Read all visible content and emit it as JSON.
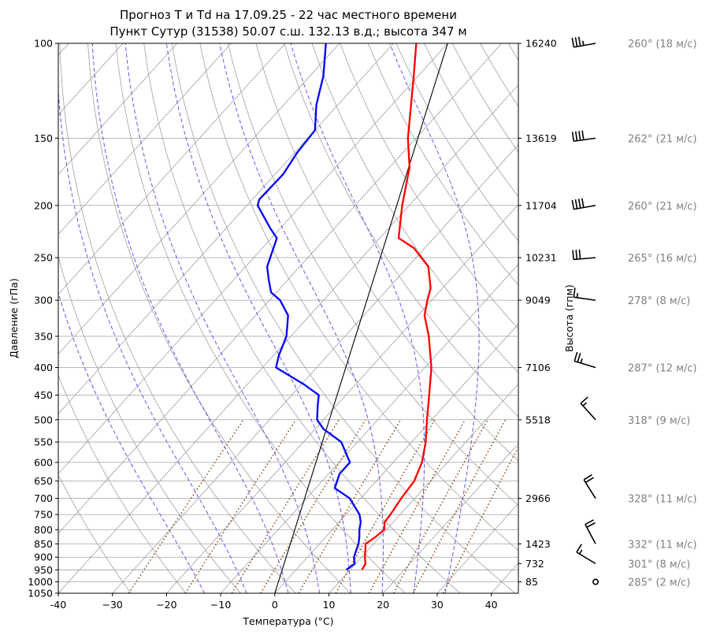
{
  "chart_data": {
    "type": "line",
    "diagram": "skew-T log-p",
    "title": "Прогноз T и Td на 17.09.25 - 22 час местного времени",
    "subtitle": "Пункт Сутур (31538) 50.07 с.ш. 132.13 в.д.; высота 347 м",
    "xlabel": "Температура (°C)",
    "ylabel": "Давление (гПа)",
    "y2label": "Высота (гпм)",
    "xlim": [
      -40,
      45
    ],
    "ylim": [
      1050,
      100
    ],
    "y_scale": "log",
    "grid": true,
    "x_ticks": [
      "-40",
      "−30",
      "−20",
      "−10",
      "0",
      "10",
      "20",
      "30",
      "40"
    ],
    "x_tick_values": [
      -40,
      -30,
      -20,
      -10,
      0,
      10,
      20,
      30,
      40
    ],
    "pressure_ticks": [
      1050,
      1000,
      950,
      900,
      850,
      800,
      750,
      700,
      650,
      600,
      550,
      500,
      450,
      400,
      350,
      300,
      250,
      200,
      150,
      100
    ],
    "height_ticks": [
      {
        "p": 100,
        "h": "16240"
      },
      {
        "p": 150,
        "h": "13619"
      },
      {
        "p": 200,
        "h": "11704"
      },
      {
        "p": 250,
        "h": "10231"
      },
      {
        "p": 300,
        "h": "9049"
      },
      {
        "p": 400,
        "h": "7106"
      },
      {
        "p": 500,
        "h": "5518"
      },
      {
        "p": 700,
        "h": "2966"
      },
      {
        "p": 850,
        "h": "1423"
      },
      {
        "p": 925,
        "h": "732"
      },
      {
        "p": 1000,
        "h": "85"
      }
    ],
    "series": [
      {
        "key": "temperature",
        "color": "#ff0000",
        "points": [
          [
            950,
            12.2
          ],
          [
            925,
            11.8
          ],
          [
            900,
            10.6
          ],
          [
            875,
            9.6
          ],
          [
            850,
            8.5
          ],
          [
            825,
            9.2
          ],
          [
            800,
            9.6
          ],
          [
            775,
            8.4
          ],
          [
            750,
            8.2
          ],
          [
            700,
            7.5
          ],
          [
            650,
            7.0
          ],
          [
            600,
            5.3
          ],
          [
            550,
            2.6
          ],
          [
            500,
            -0.9
          ],
          [
            450,
            -4.6
          ],
          [
            400,
            -8.8
          ],
          [
            350,
            -14.5
          ],
          [
            320,
            -18.8
          ],
          [
            300,
            -20.8
          ],
          [
            285,
            -22.2
          ],
          [
            260,
            -26.2
          ],
          [
            240,
            -32.0
          ],
          [
            230,
            -36.5
          ],
          [
            200,
            -41.3
          ],
          [
            170,
            -46.3
          ],
          [
            150,
            -51.5
          ],
          [
            130,
            -56.5
          ],
          [
            115,
            -60.8
          ],
          [
            100,
            -65.8
          ]
        ]
      },
      {
        "key": "dewpoint",
        "color": "#0000ff",
        "points": [
          [
            950,
            9.3
          ],
          [
            925,
            9.8
          ],
          [
            900,
            8.6
          ],
          [
            875,
            7.9
          ],
          [
            850,
            7.2
          ],
          [
            825,
            6.2
          ],
          [
            800,
            5.0
          ],
          [
            775,
            4.0
          ],
          [
            750,
            2.5
          ],
          [
            700,
            -2.0
          ],
          [
            670,
            -6.5
          ],
          [
            630,
            -8.0
          ],
          [
            600,
            -8.0
          ],
          [
            550,
            -13.0
          ],
          [
            520,
            -18.5
          ],
          [
            500,
            -21.2
          ],
          [
            470,
            -23.5
          ],
          [
            450,
            -25.0
          ],
          [
            430,
            -29.5
          ],
          [
            400,
            -37.5
          ],
          [
            380,
            -39.0
          ],
          [
            350,
            -40.8
          ],
          [
            320,
            -44.0
          ],
          [
            300,
            -48.0
          ],
          [
            290,
            -51.0
          ],
          [
            275,
            -53.5
          ],
          [
            260,
            -56.0
          ],
          [
            230,
            -59.0
          ],
          [
            220,
            -62.0
          ],
          [
            200,
            -68.0
          ],
          [
            195,
            -68.7
          ],
          [
            175,
            -68.5
          ],
          [
            160,
            -69.5
          ],
          [
            145,
            -70.0
          ],
          [
            130,
            -74.0
          ],
          [
            115,
            -77.5
          ],
          [
            100,
            -82.5
          ]
        ]
      }
    ],
    "wind": [
      {
        "p": 100,
        "label": "260° (18 м/с)"
      },
      {
        "p": 150,
        "label": "262° (21 м/с)"
      },
      {
        "p": 200,
        "label": "260° (21 м/с)"
      },
      {
        "p": 250,
        "label": "265° (16 м/с)"
      },
      {
        "p": 300,
        "label": "278° (8 м/с)"
      },
      {
        "p": 400,
        "label": "287° (12 м/с)"
      },
      {
        "p": 500,
        "label": "318° (9 м/с)"
      },
      {
        "p": 700,
        "label": "328° (11 м/с)"
      },
      {
        "p": 850,
        "label": "332° (11 м/с)"
      },
      {
        "p": 925,
        "label": "301° (8 м/с)"
      },
      {
        "p": 1000,
        "label": "285° (2 м/с)"
      }
    ],
    "colors": {
      "isotherm": "#a0a0a0",
      "dry_adiabat": "#a0a0a0",
      "moist_adiabat": "#5a5aee",
      "mixing_ratio": "#8b4513",
      "parcel": "#000000",
      "grid": "#a0a0a0",
      "wind_label": "#808080"
    }
  }
}
